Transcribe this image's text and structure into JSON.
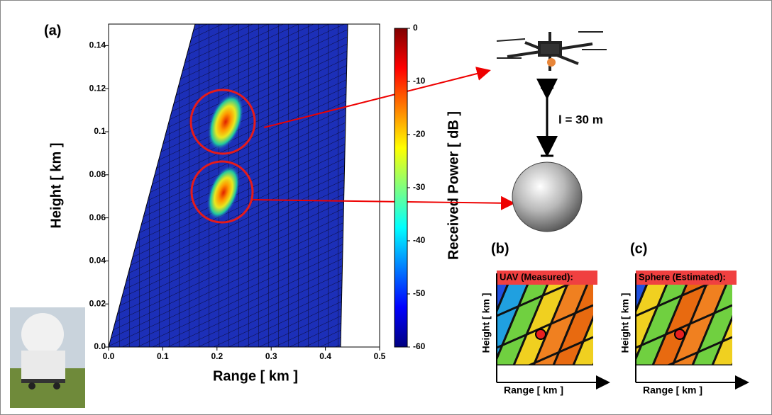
{
  "chart_data": {
    "type": "heatmap",
    "panel": "(a)",
    "xlabel": "Range [ km ]",
    "ylabel": "Height [ km ]",
    "xlim": [
      0,
      0.5
    ],
    "ylim": [
      0,
      0.15
    ],
    "xticks": [
      {
        "value": 0,
        "label": "0.0"
      },
      0.1,
      0.2,
      0.3,
      0.4,
      0.5
    ],
    "yticks": [
      {
        "value": 0,
        "label": "0.0"
      },
      0.02,
      0.04,
      0.06,
      0.08,
      0.1,
      0.12,
      0.14
    ],
    "colorbar": {
      "label": "Received Power [ dB ]",
      "clim": [
        -60,
        0
      ],
      "ticks": [
        -60,
        -50,
        -40,
        -30,
        -20,
        -10,
        0
      ],
      "colormap": "jet"
    }
  },
  "annotations": {
    "separation": "l = 30 m"
  },
  "insets": [
    {
      "panel": "(b)",
      "title": "UAV (Measured):",
      "xlabel": "Range [ km ]",
      "ylabel": "Height [ km ]"
    },
    {
      "panel": "(c)",
      "title": "Sphere (Estimated):",
      "xlabel": "Range [ km ]",
      "ylabel": "Height [ km ]"
    }
  ]
}
